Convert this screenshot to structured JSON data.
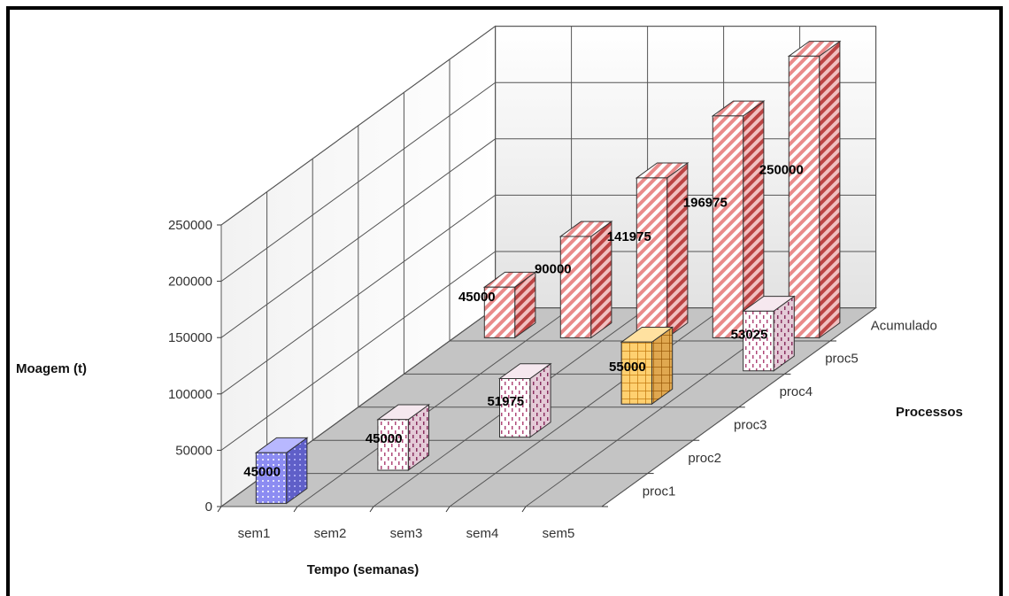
{
  "chart_data": {
    "type": "bar",
    "subtype": "3d-column",
    "categories": [
      "sem1",
      "sem2",
      "sem3",
      "sem4",
      "sem5"
    ],
    "depth_categories": [
      "proc1",
      "proc2",
      "proc3",
      "proc4",
      "proc5",
      "Acumulado"
    ],
    "series": [
      {
        "name": "proc1",
        "values": [
          45000,
          null,
          null,
          null,
          null
        ],
        "color": "#8f8ff0"
      },
      {
        "name": "proc2",
        "values": [
          null,
          45000,
          null,
          null,
          null
        ],
        "color": "#f4e6ee"
      },
      {
        "name": "proc3",
        "values": [
          null,
          null,
          51975,
          null,
          null
        ],
        "color": "#f4e6ee"
      },
      {
        "name": "proc4",
        "values": [
          null,
          null,
          null,
          55000,
          null
        ],
        "color": "#ffd68a"
      },
      {
        "name": "proc5",
        "values": [
          null,
          null,
          null,
          null,
          53025
        ],
        "color": "#f4e6ee"
      },
      {
        "name": "Acumulado",
        "values": [
          45000,
          90000,
          141975,
          196975,
          250000
        ],
        "color": "#ffb0b0"
      }
    ],
    "data_labels": {
      "proc1": [
        "45000"
      ],
      "proc2": [
        "45000"
      ],
      "proc3": [
        "51975"
      ],
      "proc4": [
        "55000"
      ],
      "proc5": [
        "53025"
      ],
      "Acumulado": [
        "45000",
        "90000",
        "141975",
        "196975",
        "250000"
      ]
    },
    "xlabel": "Tempo (semanas)",
    "ylabel": "Moagem (t)",
    "zlabel": "Processos",
    "ylim": [
      0,
      250000
    ],
    "yticks": [
      "0",
      "50000",
      "100000",
      "150000",
      "200000",
      "250000"
    ],
    "grid": true
  }
}
